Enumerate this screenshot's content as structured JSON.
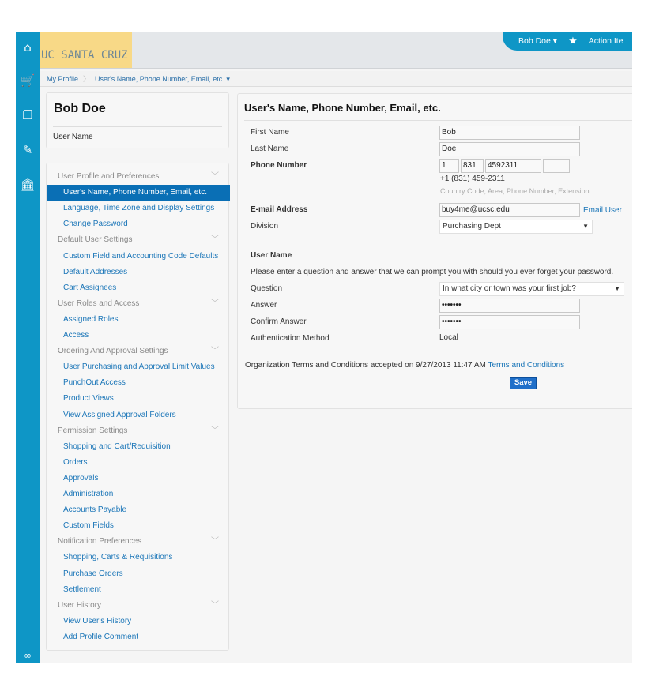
{
  "rail": {
    "icons": [
      "home-icon",
      "cart-icon",
      "documents-icon",
      "edit-icon",
      "bank-icon",
      "binoculars-icon"
    ]
  },
  "header": {
    "logo_text": "UC SANTA CRUZ",
    "user": "Bob Doe",
    "action_items": "Action Ite"
  },
  "breadcrumb": [
    "My Profile",
    "User's Name, Phone Number, Email, etc."
  ],
  "namecard": {
    "name": "Bob Doe",
    "subtitle": "User Name"
  },
  "nav": [
    {
      "type": "h",
      "label": "User Profile and Preferences"
    },
    {
      "type": "i",
      "label": "User's Name, Phone Number, Email, etc.",
      "selected": true
    },
    {
      "type": "i",
      "label": "Language, Time Zone and Display Settings"
    },
    {
      "type": "i",
      "label": "Change Password"
    },
    {
      "type": "h",
      "label": "Default User Settings"
    },
    {
      "type": "i",
      "label": "Custom Field and Accounting Code Defaults"
    },
    {
      "type": "i",
      "label": "Default Addresses"
    },
    {
      "type": "i",
      "label": "Cart Assignees"
    },
    {
      "type": "h",
      "label": "User Roles and Access"
    },
    {
      "type": "i",
      "label": "Assigned Roles"
    },
    {
      "type": "i",
      "label": "Access"
    },
    {
      "type": "h",
      "label": "Ordering And Approval Settings"
    },
    {
      "type": "i",
      "label": "User Purchasing and Approval Limit Values"
    },
    {
      "type": "i",
      "label": "PunchOut Access"
    },
    {
      "type": "i",
      "label": "Product Views"
    },
    {
      "type": "i",
      "label": "View Assigned Approval Folders"
    },
    {
      "type": "h",
      "label": "Permission Settings"
    },
    {
      "type": "i",
      "label": "Shopping and Cart/Requisition"
    },
    {
      "type": "i",
      "label": "Orders"
    },
    {
      "type": "i",
      "label": "Approvals"
    },
    {
      "type": "i",
      "label": "Administration"
    },
    {
      "type": "i",
      "label": "Accounts Payable"
    },
    {
      "type": "i",
      "label": "Custom Fields"
    },
    {
      "type": "h",
      "label": "Notification Preferences"
    },
    {
      "type": "i",
      "label": "Shopping, Carts & Requisitions"
    },
    {
      "type": "i",
      "label": "Purchase Orders"
    },
    {
      "type": "i",
      "label": "Settlement"
    },
    {
      "type": "h",
      "label": "User History"
    },
    {
      "type": "i",
      "label": "View User's History"
    },
    {
      "type": "i",
      "label": "Add Profile Comment"
    }
  ],
  "form": {
    "title": "User's Name, Phone Number, Email, etc.",
    "first_name_label": "First Name",
    "first_name": "Bob",
    "last_name_label": "Last Name",
    "last_name": "Doe",
    "phone_label": "Phone Number",
    "phone_country": "1",
    "phone_area": "831",
    "phone_number": "4592311",
    "phone_ext": "",
    "phone_formatted": "+1 (831) 459-2311",
    "phone_hint": "Country Code, Area, Phone Number, Extension",
    "email_label": "E-mail Address",
    "email": "buy4me@ucsc.edu",
    "email_user_link": "Email User",
    "division_label": "Division",
    "division": "Purchasing Dept",
    "username_heading": "User Name",
    "question_intro": "Please enter a question and answer that we can prompt you with should you ever forget your password.",
    "question_label": "Question",
    "question": "In what city or town was your first job?",
    "answer_label": "Answer",
    "answer": "•••••••",
    "confirm_label": "Confirm Answer",
    "confirm": "•••••••",
    "auth_label": "Authentication Method",
    "auth": "Local",
    "terms_text": "Organization Terms and Conditions accepted on 9/27/2013 11:47 AM",
    "terms_link": "Terms and Conditions",
    "save": "Save"
  },
  "colors": {
    "accent": "#0e96c6",
    "selected": "#0a6fb5",
    "link": "#1b76b8",
    "logo_bg": "#f8d987"
  }
}
